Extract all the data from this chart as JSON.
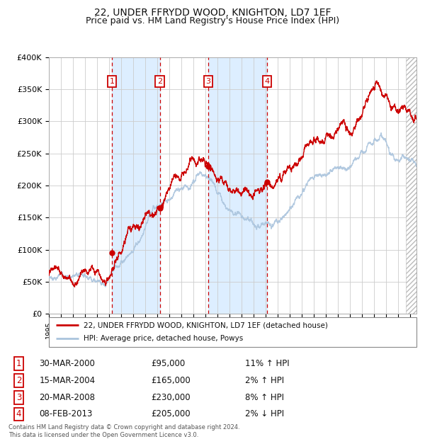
{
  "title": "22, UNDER FFRYDD WOOD, KNIGHTON, LD7 1EF",
  "subtitle": "Price paid vs. HM Land Registry's House Price Index (HPI)",
  "ylim": [
    0,
    400000
  ],
  "yticks": [
    0,
    50000,
    100000,
    150000,
    200000,
    250000,
    300000,
    350000,
    400000
  ],
  "ytick_labels": [
    "£0",
    "£50K",
    "£100K",
    "£150K",
    "£200K",
    "£250K",
    "£300K",
    "£350K",
    "£400K"
  ],
  "sales": [
    {
      "num": 1,
      "date_label": "30-MAR-2000",
      "date_x": 2000.24,
      "price": 95000,
      "pct": "11%",
      "dir": "↑"
    },
    {
      "num": 2,
      "date_label": "15-MAR-2004",
      "date_x": 2004.21,
      "price": 165000,
      "pct": "2%",
      "dir": "↑"
    },
    {
      "num": 3,
      "date_label": "20-MAR-2008",
      "date_x": 2008.22,
      "price": 230000,
      "pct": "8%",
      "dir": "↑"
    },
    {
      "num": 4,
      "date_label": "08-FEB-2013",
      "date_x": 2013.1,
      "price": 205000,
      "pct": "2%",
      "dir": "↓"
    }
  ],
  "legend_line1": "22, UNDER FFRYDD WOOD, KNIGHTON, LD7 1EF (detached house)",
  "legend_line2": "HPI: Average price, detached house, Powys",
  "footnote": "Contains HM Land Registry data © Crown copyright and database right 2024.\nThis data is licensed under the Open Government Licence v3.0.",
  "hpi_color": "#aac4dd",
  "price_color": "#cc0000",
  "sale_marker_color": "#cc0000",
  "shade_color": "#ddeeff",
  "vline_color": "#cc0000",
  "grid_color": "#cccccc",
  "bg_color": "#ffffff",
  "title_fontsize": 10,
  "subtitle_fontsize": 9,
  "xmin": 1995,
  "xmax": 2025.5
}
